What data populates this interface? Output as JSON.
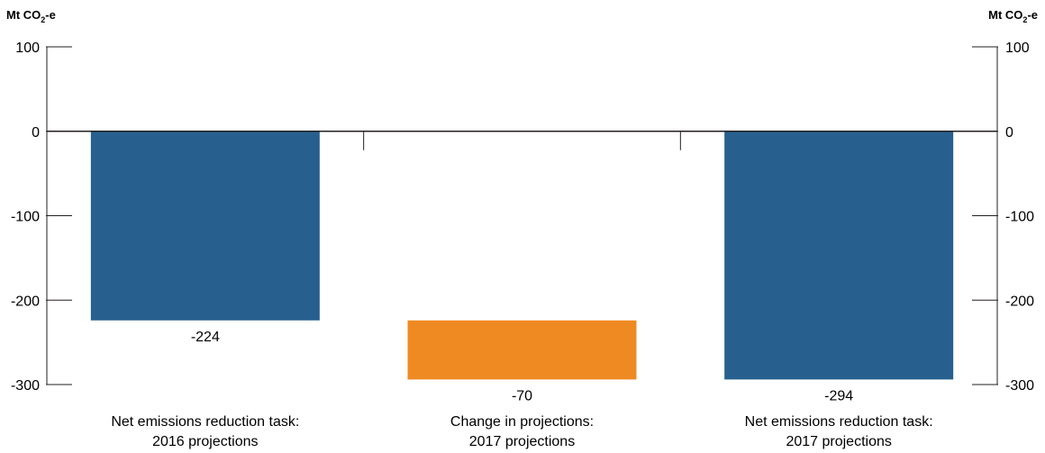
{
  "chart_data": {
    "type": "bar",
    "subtype": "waterfall",
    "left_unit": {
      "prefix": "Mt CO",
      "sub": "2",
      "suffix": "-e"
    },
    "right_unit": {
      "prefix": "Mt CO",
      "sub": "2",
      "suffix": "-e"
    },
    "ylim": [
      -300,
      100
    ],
    "yticks": [
      100,
      0,
      -100,
      -200,
      -300
    ],
    "ytick_labels": [
      "100",
      "0",
      "-100",
      "-200",
      "-300"
    ],
    "grid": false,
    "categories": [
      {
        "line1": "Net emissions reduction task:",
        "line2": "2016 projections"
      },
      {
        "line1": "Change in projections:",
        "line2": "2017 projections"
      },
      {
        "line1": "Net emissions reduction task:",
        "line2": "2017 projections"
      }
    ],
    "bars": [
      {
        "start": 0,
        "end": -224,
        "value": -224,
        "label": "-224",
        "color": "#27608f"
      },
      {
        "start": -224,
        "end": -294,
        "value": -70,
        "label": "-70",
        "color": "#ef8a22"
      },
      {
        "start": 0,
        "end": -294,
        "value": -294,
        "label": "-294",
        "color": "#27608f"
      }
    ]
  }
}
